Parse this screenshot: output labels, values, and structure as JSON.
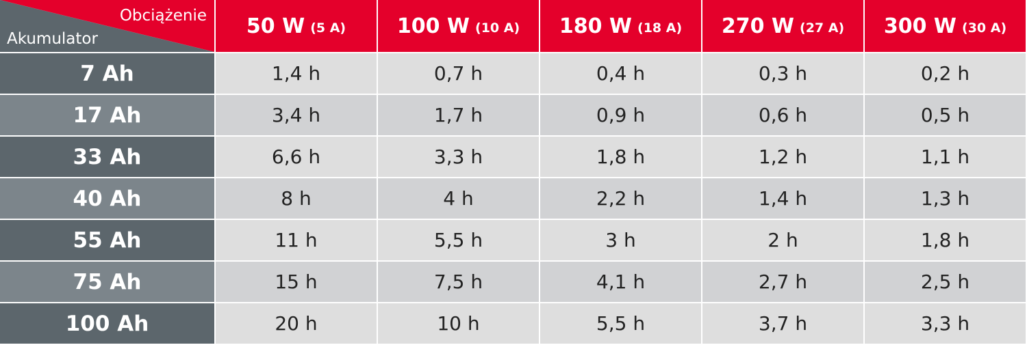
{
  "header": {
    "corner_top": "Obciążenie",
    "corner_bottom": "Akumulator",
    "columns": [
      {
        "power": "50 W",
        "current": "(5 A)"
      },
      {
        "power": "100 W",
        "current": "(10 A)"
      },
      {
        "power": "180 W",
        "current": "(18 A)"
      },
      {
        "power": "270 W",
        "current": "(27 A)"
      },
      {
        "power": "300 W",
        "current": "(30 A)"
      }
    ]
  },
  "table": {
    "rows": [
      {
        "label": "7 Ah",
        "cells": [
          "1,4 h",
          "0,7 h",
          "0,4 h",
          "0,3 h",
          "0,2 h"
        ]
      },
      {
        "label": "17 Ah",
        "cells": [
          "3,4 h",
          "1,7 h",
          "0,9 h",
          "0,6 h",
          "0,5 h"
        ]
      },
      {
        "label": "33 Ah",
        "cells": [
          "6,6 h",
          "3,3 h",
          "1,8 h",
          "1,2 h",
          "1,1 h"
        ]
      },
      {
        "label": "40 Ah",
        "cells": [
          "8 h",
          "4 h",
          "2,2 h",
          "1,4 h",
          "1,3 h"
        ]
      },
      {
        "label": "55 Ah",
        "cells": [
          "11 h",
          "5,5 h",
          "3 h",
          "2 h",
          "1,8 h"
        ]
      },
      {
        "label": "75 Ah",
        "cells": [
          "15 h",
          "7,5 h",
          "4,1 h",
          "2,7 h",
          "2,5 h"
        ]
      },
      {
        "label": "100 Ah",
        "cells": [
          "20 h",
          "10 h",
          "5,5 h",
          "3,7 h",
          "3,3 h"
        ]
      }
    ]
  }
}
